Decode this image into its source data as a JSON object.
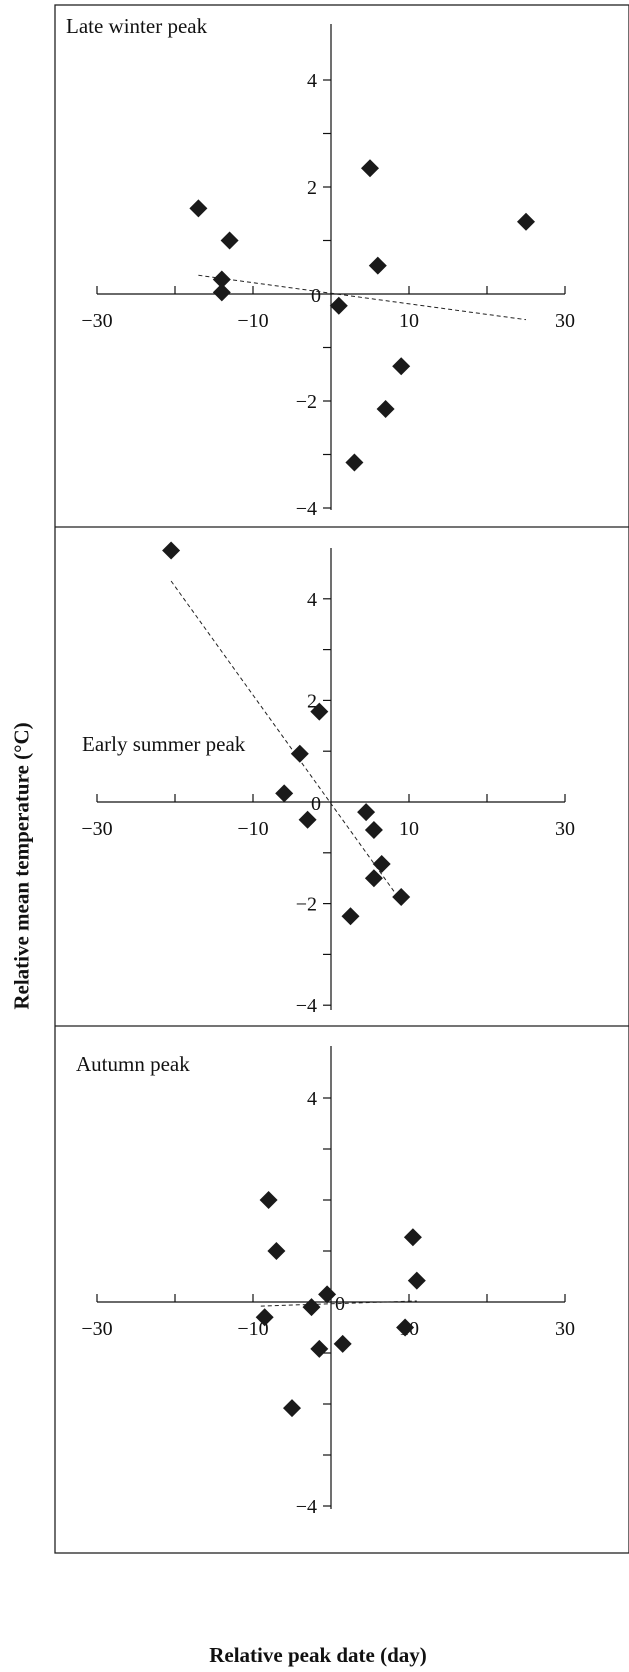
{
  "figure": {
    "ylabel": "Relative mean temperature (°C)",
    "xlabel": "Relative peak date (day)"
  },
  "chart_data": [
    {
      "type": "scatter",
      "title": "Late winter peak",
      "xlim": [
        -30,
        30
      ],
      "ylim": [
        -4,
        5
      ],
      "x_ticks": [
        -30,
        -10,
        10,
        30
      ],
      "y_ticks": [
        -4,
        -2,
        2,
        4
      ],
      "origin_label": "0",
      "points": [
        {
          "x": -17,
          "y": 1.6
        },
        {
          "x": -13,
          "y": 1.0
        },
        {
          "x": -14,
          "y": 0.27
        },
        {
          "x": -14,
          "y": 0.03
        },
        {
          "x": 1,
          "y": -0.22
        },
        {
          "x": 5,
          "y": 2.35
        },
        {
          "x": 6,
          "y": 0.53
        },
        {
          "x": 7,
          "y": -2.15
        },
        {
          "x": 9,
          "y": -1.35
        },
        {
          "x": 3,
          "y": -3.15
        },
        {
          "x": 25,
          "y": 1.35
        }
      ],
      "trendline": {
        "x": [
          -17,
          25
        ],
        "y": [
          0.35,
          -0.48
        ]
      },
      "marker_color": "#1a1a1a"
    },
    {
      "type": "scatter",
      "title": "Early summer peak",
      "xlim": [
        -30,
        30
      ],
      "ylim": [
        -4,
        5
      ],
      "x_ticks": [
        -30,
        -10,
        10,
        30
      ],
      "y_ticks": [
        -4,
        -2,
        2,
        4
      ],
      "origin_label": "0",
      "points": [
        {
          "x": -20.5,
          "y": 4.95
        },
        {
          "x": -1.5,
          "y": 1.78
        },
        {
          "x": -4,
          "y": 0.95
        },
        {
          "x": -6,
          "y": 0.17
        },
        {
          "x": -3,
          "y": -0.35
        },
        {
          "x": 4.5,
          "y": -0.2
        },
        {
          "x": 5.5,
          "y": -0.55
        },
        {
          "x": 6.5,
          "y": -1.22
        },
        {
          "x": 5.5,
          "y": -1.5
        },
        {
          "x": 9,
          "y": -1.87
        },
        {
          "x": 2.5,
          "y": -2.25
        }
      ],
      "trendline": {
        "x": [
          -20.5,
          8.5
        ],
        "y": [
          4.35,
          -1.85
        ]
      },
      "marker_color": "#1a1a1a"
    },
    {
      "type": "scatter",
      "title": "Autumn peak",
      "xlim": [
        -30,
        30
      ],
      "ylim": [
        -4,
        5
      ],
      "x_ticks": [
        -30,
        -10,
        10,
        30
      ],
      "y_ticks": [
        4,
        -4
      ],
      "origin_label": "0",
      "points": [
        {
          "x": -8,
          "y": 2.0
        },
        {
          "x": -7,
          "y": 1.0
        },
        {
          "x": -8.5,
          "y": -0.3
        },
        {
          "x": -2.5,
          "y": -0.1
        },
        {
          "x": -0.5,
          "y": 0.15
        },
        {
          "x": -1.5,
          "y": -0.92
        },
        {
          "x": 1.5,
          "y": -0.82
        },
        {
          "x": -5,
          "y": -2.08
        },
        {
          "x": 10.5,
          "y": 1.27
        },
        {
          "x": 11,
          "y": 0.42
        },
        {
          "x": 9.5,
          "y": -0.5
        }
      ],
      "trendline": {
        "x": [
          -9,
          11
        ],
        "y": [
          -0.08,
          0.02
        ]
      },
      "marker_color": "#1a1a1a"
    }
  ]
}
